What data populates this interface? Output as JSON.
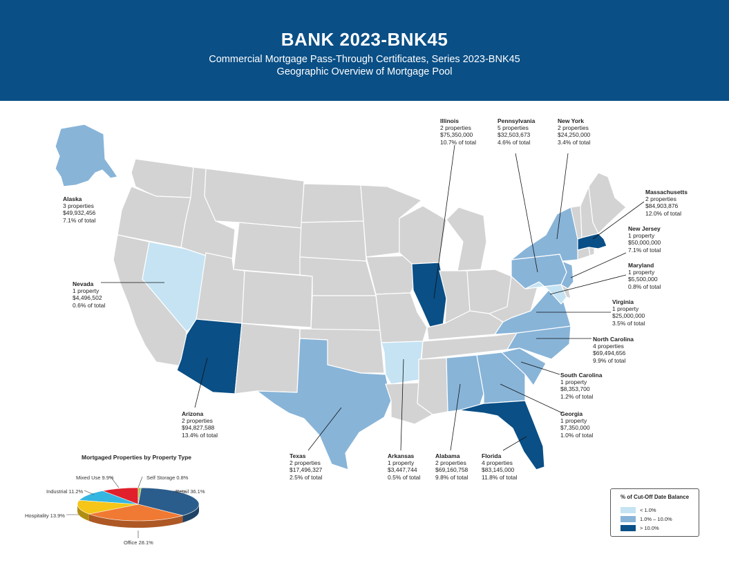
{
  "header": {
    "title": "BANK 2023-BNK45",
    "subtitle": "Commercial Mortgage Pass-Through Certificates, Series 2023-BNK45",
    "subtitle2": "Geographic Overview of Mortgage Pool"
  },
  "colors": {
    "header_bg": "#0a4f86",
    "unlisted_state": "#d3d3d3",
    "lt_1": "#c5e3f3",
    "mid": "#88b4d8",
    "gt_10": "#0a4f86"
  },
  "states": [
    {
      "name": "Alaska",
      "properties": "3 properties",
      "balance": "$49,932,456",
      "share": "7.1% of total"
    },
    {
      "name": "Nevada",
      "properties": "1 property",
      "balance": "$4,496,502",
      "share": "0.6% of total"
    },
    {
      "name": "Arizona",
      "properties": "2 properties",
      "balance": "$94,827,588",
      "share": "13.4% of total"
    },
    {
      "name": "Texas",
      "properties": "2 properties",
      "balance": "$17,496,327",
      "share": "2.5% of total"
    },
    {
      "name": "Arkansas",
      "properties": "1 property",
      "balance": "$3,447,744",
      "share": "0.5% of total"
    },
    {
      "name": "Alabama",
      "properties": "2 properties",
      "balance": "$69,160,758",
      "share": "9.8% of total"
    },
    {
      "name": "Florida",
      "properties": "4 properties",
      "balance": "$83,145,000",
      "share": "11.8% of total"
    },
    {
      "name": "Georgia",
      "properties": "1 property",
      "balance": "$7,350,000",
      "share": "1.0% of total"
    },
    {
      "name": "South Carolina",
      "properties": "1 property",
      "balance": "$8,353,700",
      "share": "1.2% of total"
    },
    {
      "name": "North Carolina",
      "properties": "4 properties",
      "balance": "$69,494,656",
      "share": "9.9% of total"
    },
    {
      "name": "Virginia",
      "properties": "1 property",
      "balance": "$25,000,000",
      "share": "3.5% of total"
    },
    {
      "name": "Maryland",
      "properties": "1 property",
      "balance": "$5,500,000",
      "share": "0.8% of total"
    },
    {
      "name": "New Jersey",
      "properties": "1 property",
      "balance": "$50,000,000",
      "share": "7.1% of total"
    },
    {
      "name": "Massachusetts",
      "properties": "2 properties",
      "balance": "$84,903,876",
      "share": "12.0% of total"
    },
    {
      "name": "New York",
      "properties": "2 properties",
      "balance": "$24,250,000",
      "share": "3.4% of total"
    },
    {
      "name": "Pennsylvania",
      "properties": "5 properties",
      "balance": "$32,503,673",
      "share": "4.6% of total"
    },
    {
      "name": "Illinois",
      "properties": "2 properties",
      "balance": "$75,350,000",
      "share": "10.7% of total"
    }
  ],
  "pie": {
    "title": "Mortgaged Properties by Property Type",
    "slices": [
      {
        "label": "Retail 36.1%",
        "value": 36.1,
        "color": "#2b5d8c"
      },
      {
        "label": "Office 28.1%",
        "value": 28.1,
        "color": "#f07a33"
      },
      {
        "label": "Hospitality 13.9%",
        "value": 13.9,
        "color": "#f5c518"
      },
      {
        "label": "Industrial 11.2%",
        "value": 11.2,
        "color": "#35b6e0"
      },
      {
        "label": "Mixed Use 9.9%",
        "value": 9.9,
        "color": "#e0202a"
      },
      {
        "label": "Self Storage 0.8%",
        "value": 0.8,
        "color": "#a8c24a"
      }
    ]
  },
  "legend": {
    "title": "% of Cut-Off Date Balance",
    "items": [
      {
        "label": "< 1.0%",
        "color": "#c5e3f3"
      },
      {
        "label": "1.0% – 10.0%",
        "color": "#88b4d8"
      },
      {
        "label": "> 10.0%",
        "color": "#0a4f86"
      }
    ]
  }
}
